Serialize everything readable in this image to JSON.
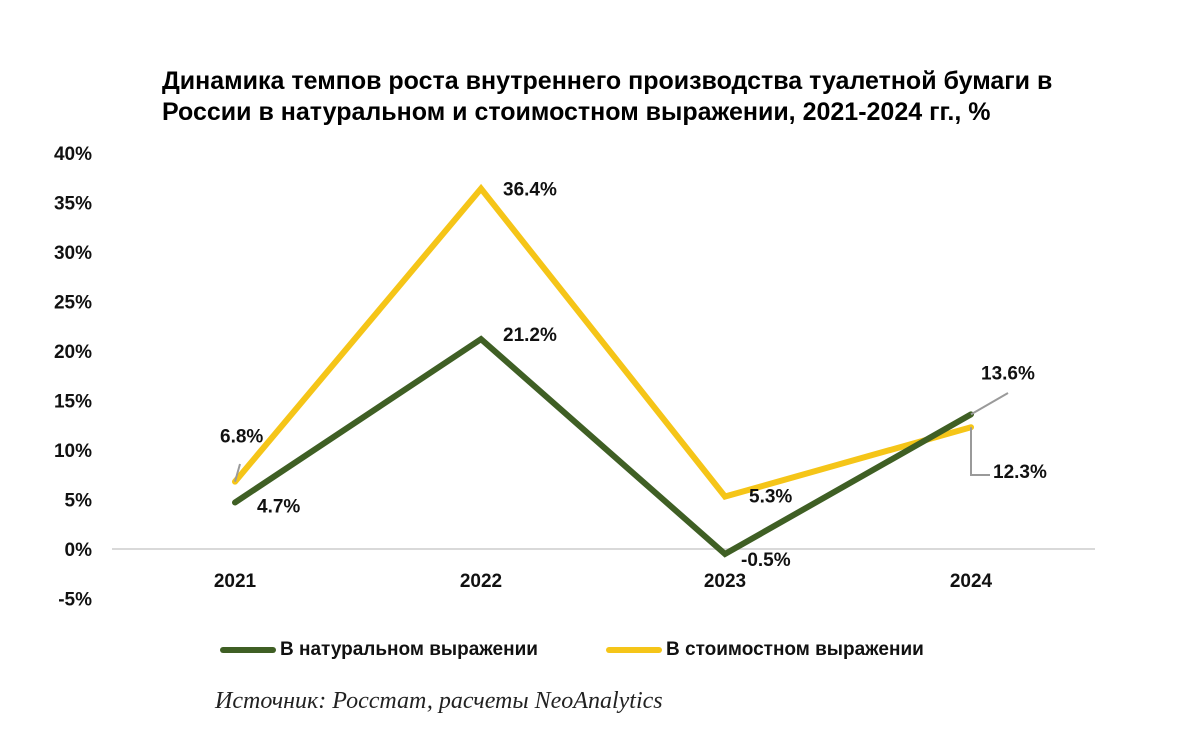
{
  "chart_data": {
    "type": "line",
    "title_lines": [
      "Динамика темпов роста внутреннего производства туалетной бумаги в",
      "России в натуральном и стоимостном выражении, 2021-2024 гг., %"
    ],
    "categories": [
      "2021",
      "2022",
      "2023",
      "2024"
    ],
    "ylim": [
      -5,
      40
    ],
    "yticks": [
      -5,
      0,
      5,
      10,
      15,
      20,
      25,
      30,
      35,
      40
    ],
    "ytick_labels": [
      "-5%",
      "0%",
      "5%",
      "10%",
      "15%",
      "20%",
      "25%",
      "30%",
      "35%",
      "40%"
    ],
    "series": [
      {
        "name": "В натуральном выражении",
        "color": "#3f5f24",
        "values": [
          4.7,
          21.2,
          -0.5,
          13.6
        ],
        "labels": [
          "4.7%",
          "21.2%",
          "-0.5%",
          "13.6%"
        ]
      },
      {
        "name": "В стоимостном выражении",
        "color": "#f5c518",
        "values": [
          6.8,
          36.4,
          5.3,
          12.3
        ],
        "labels": [
          "6.8%",
          "36.4%",
          "5.3%",
          "12.3%"
        ]
      }
    ],
    "grid": false,
    "legend_position": "bottom"
  },
  "source": "Источник: Росстат, расчеты NeoAnalytics"
}
